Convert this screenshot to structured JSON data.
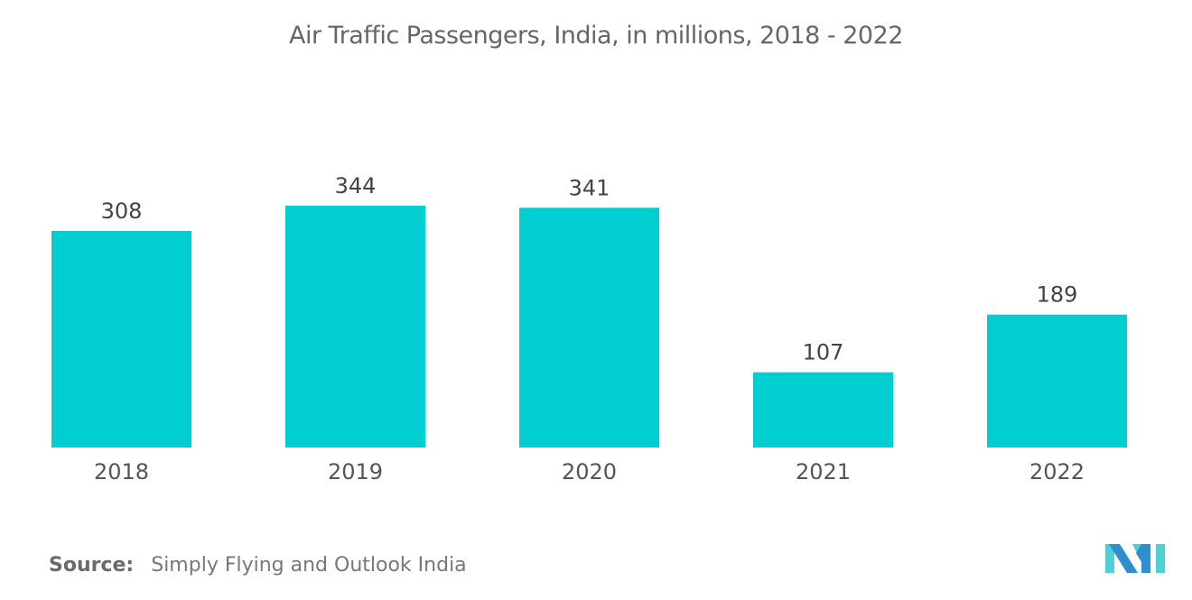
{
  "chart_data": {
    "type": "bar",
    "title": "Air Traffic Passengers, India, in millions, 2018 - 2022",
    "categories": [
      "2018",
      "2019",
      "2020",
      "2021",
      "2022"
    ],
    "values": [
      308,
      344,
      341,
      107,
      189
    ],
    "xlabel": "",
    "ylabel": "",
    "ylim": [
      0,
      400
    ],
    "grid": false,
    "legend": "none",
    "data_labels": true,
    "bar_color": "#00ced1"
  },
  "footer": {
    "source_label": "Source:",
    "source_text": "Simply Flying and Outlook India"
  },
  "logo": {
    "icon": "mordor-intelligence-logo-icon",
    "colors": [
      "#2d8fcf",
      "#4dd0d6"
    ]
  }
}
